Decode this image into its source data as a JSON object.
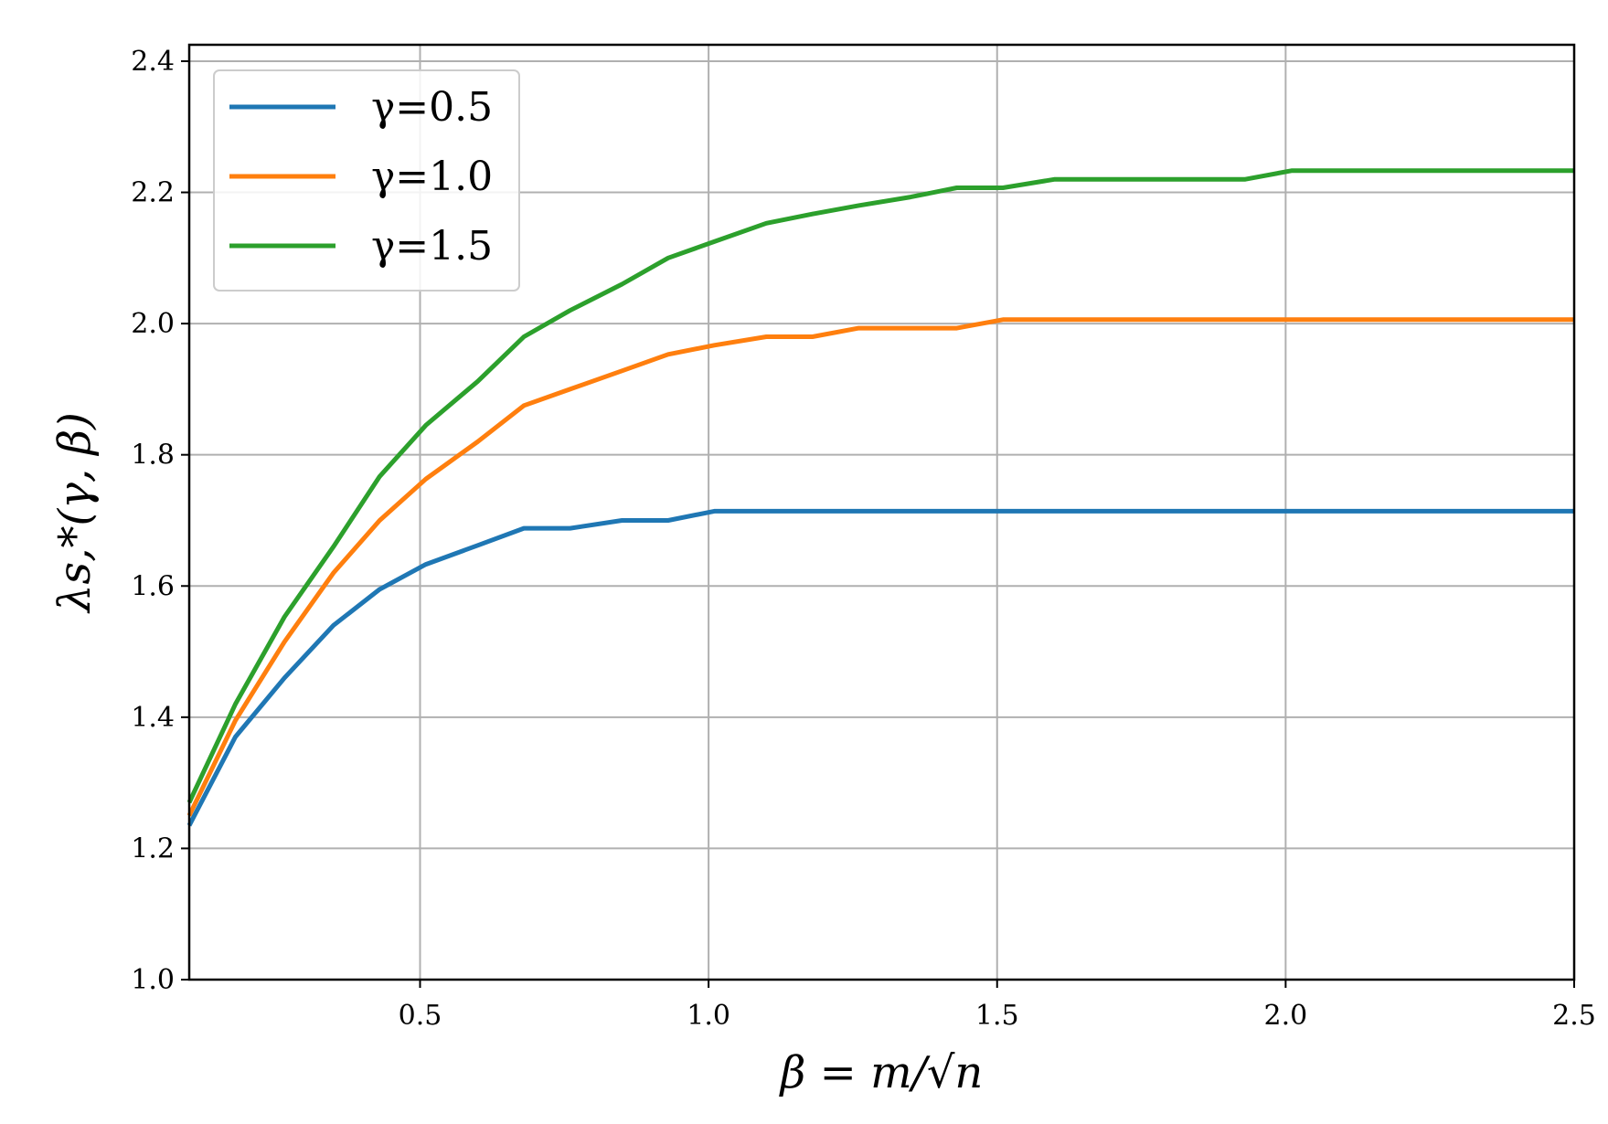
{
  "chart_data": {
    "type": "line",
    "xlabel": "β = m/√n",
    "ylabel": "λs,*(γ, β)",
    "xlim": [
      0.1,
      2.5
    ],
    "ylim": [
      1.0,
      2.425
    ],
    "x_ticks": [
      0.5,
      1.0,
      1.5,
      2.0,
      2.5
    ],
    "x_tick_labels": [
      "0.5",
      "1.0",
      "1.5",
      "2.0",
      "2.5"
    ],
    "y_ticks": [
      1.0,
      1.2,
      1.4,
      1.6,
      1.8,
      2.0,
      2.2,
      2.4
    ],
    "y_tick_labels": [
      "1.0",
      "1.2",
      "1.4",
      "1.6",
      "1.8",
      "2.0",
      "2.2",
      "2.4"
    ],
    "grid": true,
    "legend_position": "top-left",
    "series": [
      {
        "name": "γ=0.5",
        "color": "#1f77b4",
        "x": [
          0.1,
          0.18,
          0.265,
          0.35,
          0.43,
          0.51,
          0.6,
          0.68,
          0.76,
          0.85,
          0.93,
          1.01,
          1.1,
          1.18,
          1.26,
          1.35,
          1.43,
          1.51,
          1.6,
          1.68,
          1.76,
          1.85,
          1.93,
          2.01,
          2.1,
          2.18,
          2.26,
          2.35,
          2.43,
          2.5
        ],
        "y": [
          1.235,
          1.37,
          1.46,
          1.54,
          1.595,
          1.633,
          1.662,
          1.688,
          1.688,
          1.7,
          1.7,
          1.714,
          1.714,
          1.714,
          1.714,
          1.714,
          1.714,
          1.714,
          1.714,
          1.714,
          1.714,
          1.714,
          1.714,
          1.714,
          1.714,
          1.714,
          1.714,
          1.714,
          1.714,
          1.714
        ]
      },
      {
        "name": "γ=1.0",
        "color": "#ff7f0e",
        "x": [
          0.1,
          0.18,
          0.265,
          0.35,
          0.43,
          0.51,
          0.6,
          0.68,
          0.76,
          0.85,
          0.93,
          1.01,
          1.1,
          1.18,
          1.26,
          1.35,
          1.43,
          1.51,
          1.6,
          1.68,
          1.76,
          1.85,
          1.93,
          2.01,
          2.1,
          2.18,
          2.26,
          2.35,
          2.43,
          2.5
        ],
        "y": [
          1.25,
          1.395,
          1.515,
          1.62,
          1.7,
          1.763,
          1.82,
          1.875,
          1.9,
          1.928,
          1.953,
          1.967,
          1.98,
          1.98,
          1.993,
          1.993,
          1.993,
          2.006,
          2.006,
          2.006,
          2.006,
          2.006,
          2.006,
          2.006,
          2.006,
          2.006,
          2.006,
          2.006,
          2.006,
          2.006
        ]
      },
      {
        "name": "γ=1.5",
        "color": "#2ca02c",
        "x": [
          0.1,
          0.18,
          0.265,
          0.35,
          0.43,
          0.51,
          0.6,
          0.68,
          0.76,
          0.85,
          0.93,
          1.01,
          1.1,
          1.18,
          1.26,
          1.35,
          1.43,
          1.51,
          1.6,
          1.68,
          1.76,
          1.85,
          1.93,
          2.01,
          2.1,
          2.18,
          2.26,
          2.35,
          2.43,
          2.5
        ],
        "y": [
          1.27,
          1.42,
          1.553,
          1.66,
          1.767,
          1.845,
          1.912,
          1.98,
          2.02,
          2.06,
          2.1,
          2.125,
          2.153,
          2.167,
          2.18,
          2.193,
          2.207,
          2.207,
          2.22,
          2.22,
          2.22,
          2.22,
          2.22,
          2.233,
          2.233,
          2.233,
          2.233,
          2.233,
          2.233,
          2.233
        ]
      }
    ]
  }
}
